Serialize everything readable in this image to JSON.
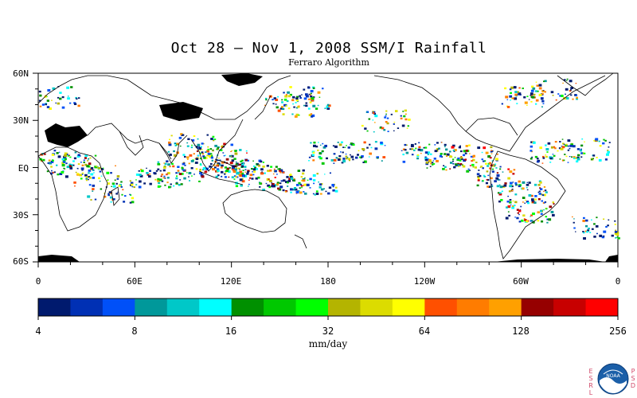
{
  "title": "Oct 28 – Nov 1, 2008 SSM/I Rainfall",
  "subtitle": "Ferraro Algorithm",
  "y_axis_labels": [
    "60N",
    "30N",
    "EQ",
    "30S",
    "60S"
  ],
  "x_axis_labels": [
    "0",
    "60E",
    "120E",
    "180",
    "120W",
    "60W",
    "0"
  ],
  "colorbar": {
    "units": "mm/day",
    "tick_labels": [
      "4",
      "8",
      "16",
      "32",
      "64",
      "128",
      "256"
    ],
    "colors": [
      "#001a6e",
      "#0030b4",
      "#0050f8",
      "#00989a",
      "#00c8c8",
      "#00ffff",
      "#009000",
      "#00c800",
      "#00ff00",
      "#b4b400",
      "#dcdc00",
      "#ffff00",
      "#ff5000",
      "#ff7c00",
      "#ffa000",
      "#960000",
      "#c80000",
      "#ff0000"
    ]
  },
  "org_left_letters": [
    "E",
    "S",
    "R",
    "L"
  ],
  "org_right_letters": [
    "P",
    "S",
    "D"
  ],
  "logo_text": "NOAA",
  "map": {
    "lon_range": [
      0,
      360
    ],
    "lat_range": [
      -60,
      60
    ],
    "no_data_color": "#000000",
    "rain_clusters": [
      {
        "lon": 10,
        "lat": 5,
        "intensity": 0.5
      },
      {
        "lon": 22,
        "lat": 2,
        "intensity": 0.6
      },
      {
        "lon": 35,
        "lat": -5,
        "intensity": 0.4
      },
      {
        "lon": 45,
        "lat": -15,
        "intensity": 0.4
      },
      {
        "lon": 75,
        "lat": -5,
        "intensity": 0.6
      },
      {
        "lon": 88,
        "lat": -2,
        "intensity": 0.6
      },
      {
        "lon": 95,
        "lat": 15,
        "intensity": 0.5
      },
      {
        "lon": 105,
        "lat": 10,
        "intensity": 0.6
      },
      {
        "lon": 115,
        "lat": 5,
        "intensity": 0.8
      },
      {
        "lon": 125,
        "lat": 0,
        "intensity": 0.8
      },
      {
        "lon": 135,
        "lat": -5,
        "intensity": 0.9
      },
      {
        "lon": 150,
        "lat": -8,
        "intensity": 0.7
      },
      {
        "lon": 155,
        "lat": 40,
        "intensity": 0.5
      },
      {
        "lon": 165,
        "lat": 45,
        "intensity": 0.5
      },
      {
        "lon": 170,
        "lat": -10,
        "intensity": 0.5
      },
      {
        "lon": 180,
        "lat": 10,
        "intensity": 0.4
      },
      {
        "lon": 200,
        "lat": 10,
        "intensity": 0.4
      },
      {
        "lon": 215,
        "lat": 30,
        "intensity": 0.4
      },
      {
        "lon": 240,
        "lat": 10,
        "intensity": 0.5
      },
      {
        "lon": 255,
        "lat": 5,
        "intensity": 0.6
      },
      {
        "lon": 270,
        "lat": 8,
        "intensity": 0.8
      },
      {
        "lon": 285,
        "lat": -5,
        "intensity": 0.7
      },
      {
        "lon": 300,
        "lat": -15,
        "intensity": 0.7
      },
      {
        "lon": 305,
        "lat": -28,
        "intensity": 0.8
      },
      {
        "lon": 320,
        "lat": 10,
        "intensity": 0.6
      },
      {
        "lon": 340,
        "lat": 12,
        "intensity": 0.5
      },
      {
        "lon": 345,
        "lat": -38,
        "intensity": 0.4
      },
      {
        "lon": 10,
        "lat": 45,
        "intensity": 0.4
      },
      {
        "lon": 300,
        "lat": 45,
        "intensity": 0.5
      },
      {
        "lon": 320,
        "lat": 50,
        "intensity": 0.4
      }
    ]
  }
}
